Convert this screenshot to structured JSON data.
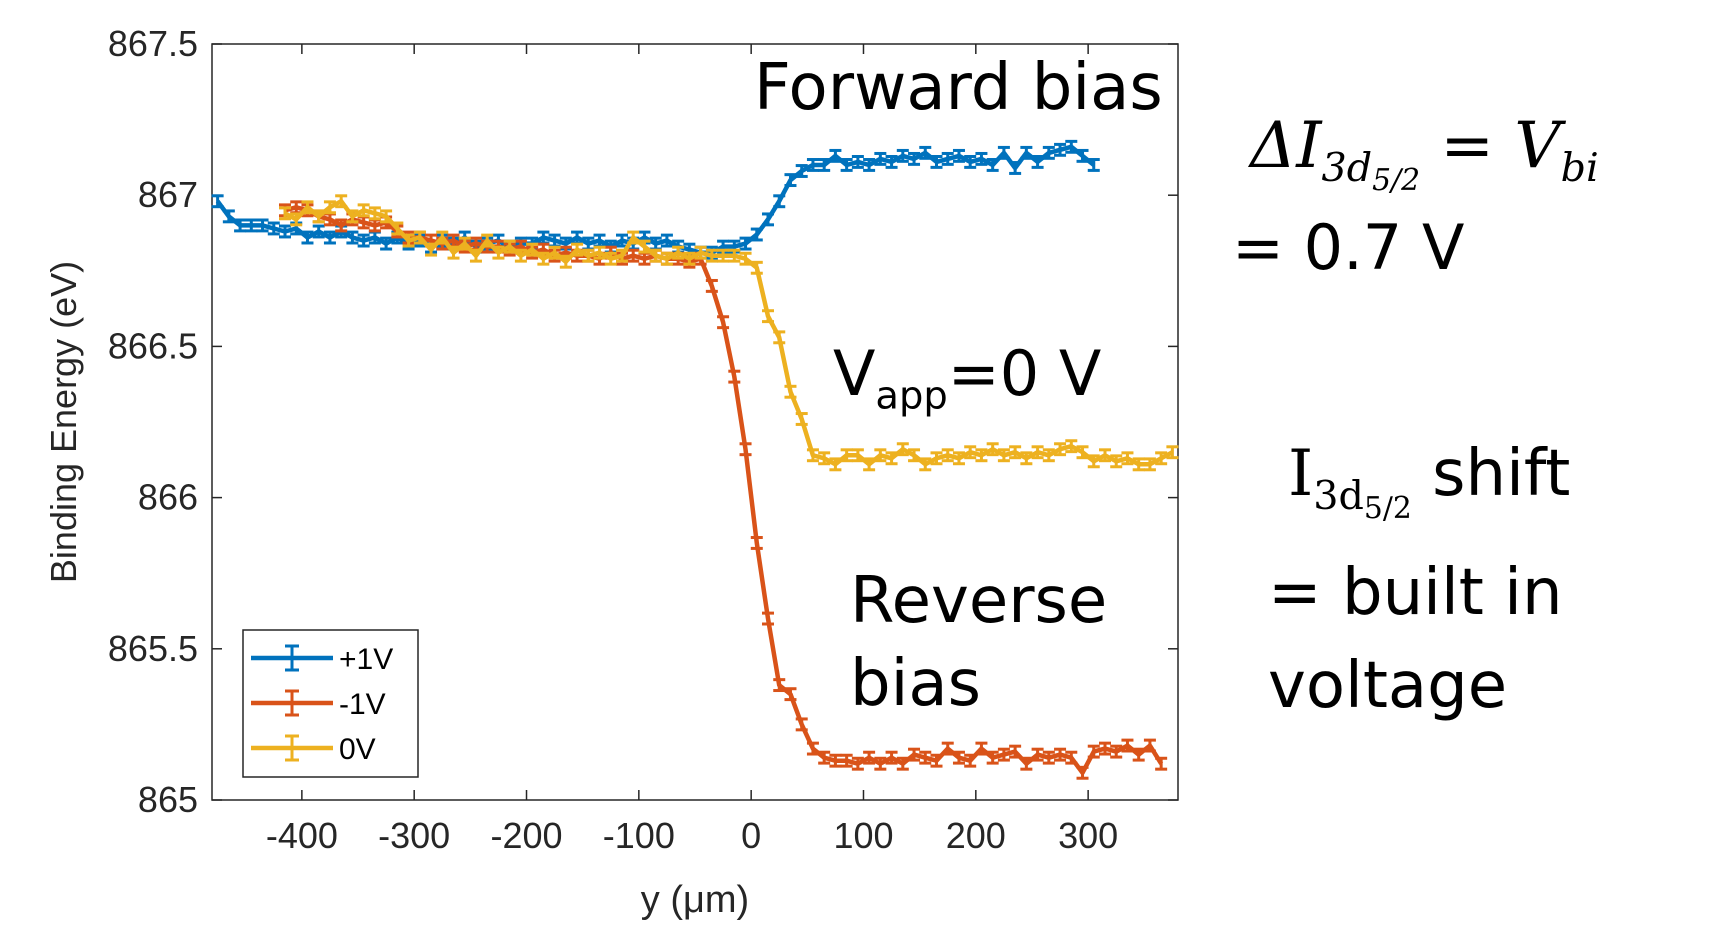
{
  "chart_data": {
    "type": "line",
    "title": "",
    "xlabel": "y (μm)",
    "ylabel": "Binding Energy (eV)",
    "xlim": [
      -480,
      380
    ],
    "ylim": [
      865,
      867.5
    ],
    "xticks": [
      -400,
      -300,
      -200,
      -100,
      0,
      100,
      200,
      300
    ],
    "yticks": [
      865,
      865.5,
      866,
      866.5,
      867,
      867.5
    ],
    "ytick_labels": [
      "865",
      "865.5",
      "866",
      "866.5",
      "867",
      "867.5"
    ],
    "grid": false,
    "legend_position": "bottom-left",
    "error_bar_half_width": 0.018,
    "series": [
      {
        "name": "+1V",
        "color": "#0072BD",
        "points": [
          [
            -475,
            866.98
          ],
          [
            -465,
            866.93
          ],
          [
            -455,
            866.9
          ],
          [
            -445,
            866.9
          ],
          [
            -435,
            866.9
          ],
          [
            -425,
            866.89
          ],
          [
            -415,
            866.88
          ],
          [
            -405,
            866.89
          ],
          [
            -395,
            866.86
          ],
          [
            -385,
            866.88
          ],
          [
            -375,
            866.86
          ],
          [
            -365,
            866.88
          ],
          [
            -355,
            866.86
          ],
          [
            -345,
            866.85
          ],
          [
            -335,
            866.86
          ],
          [
            -325,
            866.84
          ],
          [
            -315,
            866.86
          ],
          [
            -305,
            866.84
          ],
          [
            -295,
            866.85
          ],
          [
            -285,
            866.83
          ],
          [
            -275,
            866.85
          ],
          [
            -265,
            866.84
          ],
          [
            -255,
            866.86
          ],
          [
            -245,
            866.83
          ],
          [
            -235,
            866.84
          ],
          [
            -225,
            866.85
          ],
          [
            -215,
            866.83
          ],
          [
            -205,
            866.84
          ],
          [
            -195,
            866.84
          ],
          [
            -185,
            866.86
          ],
          [
            -175,
            866.85
          ],
          [
            -165,
            866.84
          ],
          [
            -155,
            866.86
          ],
          [
            -145,
            866.84
          ],
          [
            -135,
            866.85
          ],
          [
            -125,
            866.83
          ],
          [
            -115,
            866.85
          ],
          [
            -105,
            866.84
          ],
          [
            -95,
            866.86
          ],
          [
            -85,
            866.84
          ],
          [
            -75,
            866.85
          ],
          [
            -65,
            866.83
          ],
          [
            -55,
            866.82
          ],
          [
            -45,
            866.81
          ],
          [
            -35,
            866.81
          ],
          [
            -25,
            866.83
          ],
          [
            -15,
            866.83
          ],
          [
            -5,
            866.84
          ],
          [
            5,
            866.87
          ],
          [
            15,
            866.92
          ],
          [
            25,
            866.98
          ],
          [
            35,
            867.05
          ],
          [
            45,
            867.08
          ],
          [
            55,
            867.1
          ],
          [
            65,
            867.1
          ],
          [
            75,
            867.13
          ],
          [
            85,
            867.1
          ],
          [
            95,
            867.11
          ],
          [
            105,
            867.1
          ],
          [
            115,
            867.12
          ],
          [
            125,
            867.11
          ],
          [
            135,
            867.13
          ],
          [
            145,
            867.12
          ],
          [
            155,
            867.14
          ],
          [
            165,
            867.11
          ],
          [
            175,
            867.12
          ],
          [
            185,
            867.13
          ],
          [
            195,
            867.11
          ],
          [
            205,
            867.12
          ],
          [
            215,
            867.1
          ],
          [
            225,
            867.14
          ],
          [
            235,
            867.09
          ],
          [
            245,
            867.14
          ],
          [
            255,
            867.11
          ],
          [
            265,
            867.14
          ],
          [
            275,
            867.15
          ],
          [
            285,
            867.16
          ],
          [
            295,
            867.13
          ],
          [
            305,
            867.1
          ]
        ]
      },
      {
        "name": "-1V",
        "color": "#D95319",
        "points": [
          [
            -415,
            866.95
          ],
          [
            -405,
            866.96
          ],
          [
            -395,
            866.95
          ],
          [
            -385,
            866.93
          ],
          [
            -375,
            866.92
          ],
          [
            -365,
            866.9
          ],
          [
            -355,
            866.92
          ],
          [
            -345,
            866.91
          ],
          [
            -335,
            866.9
          ],
          [
            -325,
            866.91
          ],
          [
            -315,
            866.88
          ],
          [
            -305,
            866.86
          ],
          [
            -295,
            866.86
          ],
          [
            -285,
            866.85
          ],
          [
            -275,
            866.84
          ],
          [
            -265,
            866.85
          ],
          [
            -255,
            866.83
          ],
          [
            -245,
            866.84
          ],
          [
            -235,
            866.83
          ],
          [
            -225,
            866.83
          ],
          [
            -215,
            866.82
          ],
          [
            -205,
            866.83
          ],
          [
            -195,
            866.81
          ],
          [
            -185,
            866.82
          ],
          [
            -175,
            866.8
          ],
          [
            -165,
            866.81
          ],
          [
            -155,
            866.8
          ],
          [
            -145,
            866.8
          ],
          [
            -135,
            866.79
          ],
          [
            -125,
            866.81
          ],
          [
            -115,
            866.79
          ],
          [
            -105,
            866.8
          ],
          [
            -95,
            866.79
          ],
          [
            -85,
            866.8
          ],
          [
            -75,
            866.79
          ],
          [
            -65,
            866.79
          ],
          [
            -55,
            866.78
          ],
          [
            -45,
            866.79
          ],
          [
            -35,
            866.7
          ],
          [
            -25,
            866.58
          ],
          [
            -15,
            866.4
          ],
          [
            -5,
            866.16
          ],
          [
            5,
            865.85
          ],
          [
            15,
            865.6
          ],
          [
            25,
            865.38
          ],
          [
            35,
            865.35
          ],
          [
            45,
            865.25
          ],
          [
            55,
            865.17
          ],
          [
            65,
            865.14
          ],
          [
            75,
            865.13
          ],
          [
            85,
            865.13
          ],
          [
            95,
            865.12
          ],
          [
            105,
            865.14
          ],
          [
            115,
            865.12
          ],
          [
            125,
            865.14
          ],
          [
            135,
            865.12
          ],
          [
            145,
            865.15
          ],
          [
            155,
            865.14
          ],
          [
            165,
            865.13
          ],
          [
            175,
            865.17
          ],
          [
            185,
            865.14
          ],
          [
            195,
            865.13
          ],
          [
            205,
            865.17
          ],
          [
            215,
            865.14
          ],
          [
            225,
            865.15
          ],
          [
            235,
            865.16
          ],
          [
            245,
            865.12
          ],
          [
            255,
            865.15
          ],
          [
            265,
            865.14
          ],
          [
            275,
            865.15
          ],
          [
            285,
            865.14
          ],
          [
            295,
            865.09
          ],
          [
            305,
            865.16
          ],
          [
            315,
            865.17
          ],
          [
            325,
            865.16
          ],
          [
            335,
            865.18
          ],
          [
            345,
            865.15
          ],
          [
            355,
            865.18
          ],
          [
            365,
            865.12
          ]
        ]
      },
      {
        "name": "0V",
        "color": "#EDB120",
        "points": [
          [
            -415,
            866.94
          ],
          [
            -405,
            866.92
          ],
          [
            -395,
            866.96
          ],
          [
            -385,
            866.93
          ],
          [
            -375,
            866.96
          ],
          [
            -365,
            866.98
          ],
          [
            -355,
            866.93
          ],
          [
            -345,
            866.95
          ],
          [
            -335,
            866.94
          ],
          [
            -325,
            866.93
          ],
          [
            -315,
            866.89
          ],
          [
            -305,
            866.85
          ],
          [
            -295,
            866.86
          ],
          [
            -285,
            866.82
          ],
          [
            -275,
            866.86
          ],
          [
            -265,
            866.81
          ],
          [
            -255,
            866.84
          ],
          [
            -245,
            866.8
          ],
          [
            -235,
            866.85
          ],
          [
            -225,
            866.81
          ],
          [
            -215,
            866.83
          ],
          [
            -205,
            866.8
          ],
          [
            -195,
            866.82
          ],
          [
            -185,
            866.79
          ],
          [
            -175,
            866.81
          ],
          [
            -165,
            866.78
          ],
          [
            -155,
            866.82
          ],
          [
            -145,
            866.8
          ],
          [
            -135,
            866.81
          ],
          [
            -125,
            866.79
          ],
          [
            -115,
            866.8
          ],
          [
            -105,
            866.86
          ],
          [
            -95,
            866.83
          ],
          [
            -85,
            866.8
          ],
          [
            -75,
            866.79
          ],
          [
            -65,
            866.81
          ],
          [
            -55,
            866.79
          ],
          [
            -45,
            866.81
          ],
          [
            -35,
            866.8
          ],
          [
            -25,
            866.8
          ],
          [
            -15,
            866.8
          ],
          [
            -5,
            866.79
          ],
          [
            5,
            866.76
          ],
          [
            15,
            866.6
          ],
          [
            25,
            866.53
          ],
          [
            35,
            866.35
          ],
          [
            45,
            866.26
          ],
          [
            55,
            866.14
          ],
          [
            65,
            866.13
          ],
          [
            75,
            866.11
          ],
          [
            85,
            866.14
          ],
          [
            95,
            866.14
          ],
          [
            105,
            866.11
          ],
          [
            115,
            866.14
          ],
          [
            125,
            866.13
          ],
          [
            135,
            866.16
          ],
          [
            145,
            866.14
          ],
          [
            155,
            866.11
          ],
          [
            165,
            866.13
          ],
          [
            175,
            866.14
          ],
          [
            185,
            866.13
          ],
          [
            195,
            866.15
          ],
          [
            205,
            866.14
          ],
          [
            215,
            866.16
          ],
          [
            225,
            866.14
          ],
          [
            235,
            866.15
          ],
          [
            245,
            866.13
          ],
          [
            255,
            866.15
          ],
          [
            265,
            866.14
          ],
          [
            275,
            866.16
          ],
          [
            285,
            866.17
          ],
          [
            295,
            866.15
          ],
          [
            305,
            866.12
          ],
          [
            315,
            866.14
          ],
          [
            325,
            866.12
          ],
          [
            335,
            866.13
          ],
          [
            345,
            866.11
          ],
          [
            355,
            866.11
          ],
          [
            365,
            866.13
          ],
          [
            375,
            866.15
          ]
        ]
      }
    ],
    "annotations": {
      "forward": "Forward bias",
      "vapp_main": "V",
      "vapp_sub": "app",
      "vapp_rest": "=0 V",
      "reverse_1": "Reverse",
      "reverse_2": "bias"
    }
  },
  "side_notes": {
    "delta_symbol": "ΔI",
    "delta_sub": "3d",
    "delta_subsub": "5/2",
    "delta_eq": " = V",
    "delta_eq_sub": "bi",
    "equals_value": "= 0.7 V",
    "shift_I": "I",
    "shift_sub": "3d",
    "shift_subsub": "5/2",
    "shift_word": " shift",
    "builtin_line": "= built in",
    "voltage_line": "voltage"
  }
}
